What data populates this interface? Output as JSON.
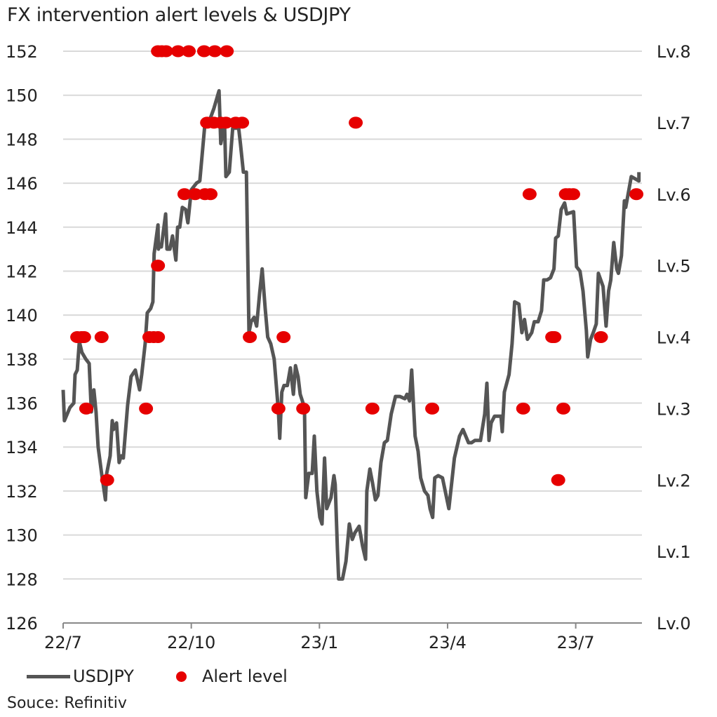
{
  "chart_data": {
    "type": "line",
    "title": "FX intervention alert levels & USDJPY",
    "x_unit": "months since start of Jul 2022",
    "xlim": [
      0,
      13.55
    ],
    "xticks": [
      {
        "value": 0,
        "label": "22/7"
      },
      {
        "value": 3,
        "label": "22/10"
      },
      {
        "value": 6,
        "label": "23/1"
      },
      {
        "value": 9,
        "label": "23/4"
      },
      {
        "value": 12,
        "label": "23/7"
      }
    ],
    "ylim_left": [
      126,
      152
    ],
    "yticks_left": [
      "126",
      "128",
      "130",
      "132",
      "134",
      "136",
      "138",
      "140",
      "142",
      "144",
      "146",
      "148",
      "150",
      "152"
    ],
    "ylim_right": [
      0,
      8
    ],
    "yticks_right": [
      "Lv.0",
      "Lv.1",
      "Lv.2",
      "Lv.3",
      "Lv.4",
      "Lv.5",
      "Lv.6",
      "Lv.7",
      "Lv.8"
    ],
    "grid": true,
    "legend": {
      "placement": "bottom-left",
      "entries": [
        "USDJPY",
        "Alert level"
      ]
    },
    "colors": {
      "line": "#555555",
      "dots": "#e60000",
      "grid": "#d9d9d9"
    },
    "series": [
      {
        "name": "USDJPY",
        "axis": "left",
        "kind": "line",
        "x": [
          0,
          0.03,
          0.16,
          0.25,
          0.28,
          0.33,
          0.38,
          0.44,
          0.53,
          0.61,
          0.66,
          0.72,
          0.77,
          0.82,
          0.9,
          0.99,
          1.02,
          1.1,
          1.15,
          1.18,
          1.25,
          1.31,
          1.36,
          1.41,
          1.51,
          1.59,
          1.69,
          1.79,
          1.84,
          1.92,
          1.97,
          2.05,
          2.1,
          2.13,
          2.22,
          2.23,
          2.27,
          2.3,
          2.4,
          2.43,
          2.5,
          2.56,
          2.64,
          2.68,
          2.73,
          2.79,
          2.87,
          2.92,
          3.0,
          3.12,
          3.2,
          3.32,
          3.4,
          3.53,
          3.65,
          3.69,
          3.78,
          3.81,
          3.89,
          3.97,
          4.11,
          4.15,
          4.22,
          4.29,
          4.35,
          4.4,
          4.47,
          4.53,
          4.6,
          4.66,
          4.73,
          4.79,
          4.86,
          4.94,
          5.04,
          5.07,
          5.12,
          5.17,
          5.25,
          5.32,
          5.39,
          5.44,
          5.5,
          5.55,
          5.65,
          5.68,
          5.75,
          5.83,
          5.88,
          5.94,
          6.01,
          6.06,
          6.12,
          6.17,
          6.27,
          6.34,
          6.37,
          6.42,
          6.45,
          6.54,
          6.62,
          6.7,
          6.77,
          6.83,
          6.93,
          7.01,
          7.08,
          7.11,
          7.18,
          7.24,
          7.31,
          7.37,
          7.44,
          7.52,
          7.59,
          7.68,
          7.78,
          7.88,
          8.0,
          8.05,
          8.11,
          8.16,
          8.24,
          8.31,
          8.37,
          8.46,
          8.54,
          8.59,
          8.65,
          8.7,
          8.78,
          8.88,
          9.03,
          9.16,
          9.28,
          9.36,
          9.49,
          9.56,
          9.64,
          9.77,
          9.87,
          9.92,
          9.97,
          10.02,
          10.1,
          10.25,
          10.28,
          10.33,
          10.44,
          10.51,
          10.57,
          10.67,
          10.74,
          10.8,
          10.87,
          10.97,
          11.03,
          11.12,
          11.2,
          11.25,
          11.33,
          11.41,
          11.49,
          11.53,
          11.59,
          11.66,
          11.74,
          11.79,
          11.95,
          12.02,
          12.1,
          12.17,
          12.25,
          12.28,
          12.35,
          12.41,
          12.48,
          12.53,
          12.64,
          12.71,
          12.77,
          12.82,
          12.89,
          12.96,
          13.0,
          13.07,
          13.14,
          13.17,
          13.3,
          13.48,
          13.48
        ],
        "y": [
          136.6,
          135.2,
          135.8,
          136.0,
          137.3,
          137.5,
          138.8,
          138.3,
          138.0,
          137.8,
          135.6,
          136.6,
          135.6,
          134.0,
          132.8,
          131.6,
          132.8,
          133.6,
          135.2,
          134.8,
          135.1,
          133.3,
          133.6,
          133.5,
          135.9,
          137.2,
          137.5,
          136.6,
          137.3,
          138.7,
          140.1,
          140.3,
          140.6,
          142.8,
          144.1,
          143.0,
          143.2,
          143.1,
          144.6,
          143.0,
          143.0,
          143.6,
          142.5,
          144.0,
          144.0,
          144.9,
          144.8,
          144.2,
          145.7,
          146.0,
          146.1,
          148.7,
          148.7,
          149.4,
          150.2,
          147.8,
          148.7,
          146.3,
          146.5,
          148.5,
          148.5,
          147.8,
          146.5,
          146.5,
          139.2,
          139.7,
          139.9,
          139.5,
          141.0,
          142.1,
          140.3,
          139.0,
          138.7,
          138.0,
          135.6,
          134.4,
          136.5,
          136.8,
          136.8,
          137.6,
          136.4,
          137.7,
          137.2,
          136.4,
          135.8,
          131.7,
          132.8,
          132.8,
          134.5,
          132.0,
          130.8,
          130.5,
          133.5,
          131.2,
          131.7,
          132.7,
          132.3,
          129.4,
          128.0,
          128.0,
          128.8,
          130.5,
          129.8,
          130.1,
          130.4,
          129.5,
          128.9,
          132.0,
          133.0,
          132.4,
          131.6,
          131.8,
          133.3,
          134.2,
          134.3,
          135.5,
          136.3,
          136.3,
          136.2,
          136.4,
          136.1,
          137.5,
          134.5,
          133.8,
          132.6,
          132.0,
          131.8,
          131.2,
          130.8,
          132.6,
          132.7,
          132.6,
          131.2,
          133.5,
          134.5,
          134.8,
          134.2,
          134.2,
          134.3,
          134.3,
          135.5,
          136.9,
          134.3,
          135.1,
          135.4,
          135.4,
          134.7,
          136.5,
          137.3,
          138.7,
          140.6,
          140.5,
          139.2,
          139.8,
          138.9,
          139.2,
          139.7,
          139.7,
          140.2,
          141.6,
          141.6,
          141.7,
          142.1,
          143.5,
          143.6,
          144.8,
          145.1,
          144.6,
          144.7,
          142.2,
          142.0,
          141.1,
          139.3,
          138.1,
          138.9,
          139.2,
          139.6,
          141.9,
          141.3,
          139.5,
          141.1,
          141.6,
          143.3,
          142.1,
          141.9,
          142.7,
          145.2,
          144.9,
          146.3,
          146.1,
          146.5
        ]
      },
      {
        "name": "Alert level",
        "axis": "right",
        "kind": "scatter",
        "points": [
          [
            2.22,
            8
          ],
          [
            2.31,
            8
          ],
          [
            2.41,
            8
          ],
          [
            2.69,
            8
          ],
          [
            2.94,
            8
          ],
          [
            3.3,
            8
          ],
          [
            3.55,
            8
          ],
          [
            3.83,
            8
          ],
          [
            3.37,
            7
          ],
          [
            3.53,
            7
          ],
          [
            3.69,
            7
          ],
          [
            3.81,
            7
          ],
          [
            4.04,
            7
          ],
          [
            4.19,
            7
          ],
          [
            6.85,
            7
          ],
          [
            2.84,
            6
          ],
          [
            3.09,
            6
          ],
          [
            3.32,
            6
          ],
          [
            3.45,
            6
          ],
          [
            10.92,
            6
          ],
          [
            11.77,
            6
          ],
          [
            11.85,
            6
          ],
          [
            11.94,
            6
          ],
          [
            13.42,
            6
          ],
          [
            2.22,
            5
          ],
          [
            0.33,
            4
          ],
          [
            0.43,
            4
          ],
          [
            0.49,
            4
          ],
          [
            0.9,
            4
          ],
          [
            2.02,
            4
          ],
          [
            2.12,
            4
          ],
          [
            2.22,
            4
          ],
          [
            4.37,
            4
          ],
          [
            5.16,
            4
          ],
          [
            11.45,
            4
          ],
          [
            11.5,
            4
          ],
          [
            12.59,
            4
          ],
          [
            0.54,
            3
          ],
          [
            1.94,
            3
          ],
          [
            5.04,
            3
          ],
          [
            5.62,
            3
          ],
          [
            7.24,
            3
          ],
          [
            8.64,
            3
          ],
          [
            10.77,
            3
          ],
          [
            11.71,
            3
          ],
          [
            1.03,
            2
          ],
          [
            11.59,
            2
          ]
        ]
      }
    ]
  },
  "source": "Souce: Refinitiv"
}
